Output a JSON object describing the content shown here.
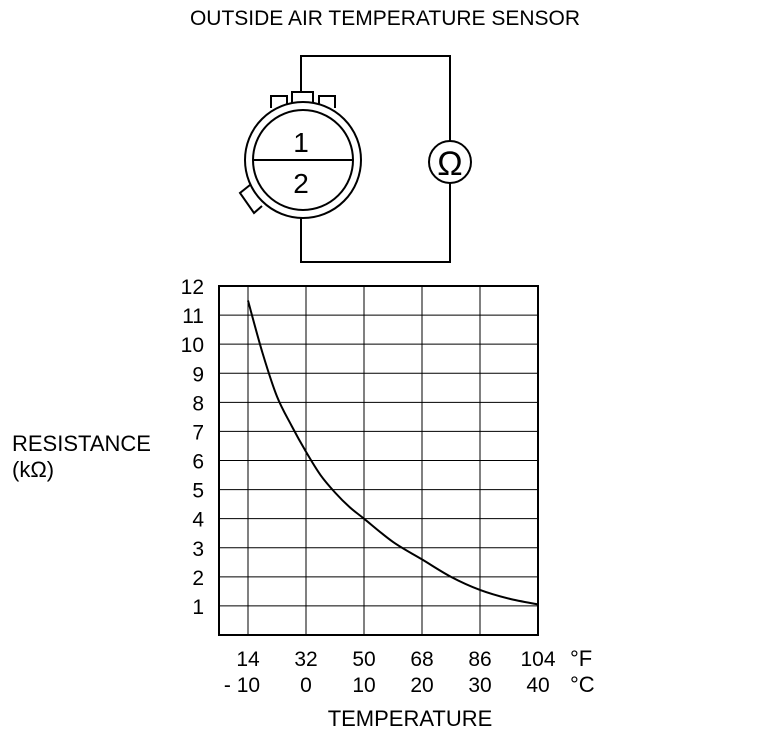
{
  "title": "OUTSIDE AIR TEMPERATURE SENSOR",
  "connector": {
    "pin_top": "1",
    "pin_bottom": "2",
    "meter_symbol": "Ω"
  },
  "chart_data": {
    "type": "line",
    "ylabel_line1": "RESISTANCE",
    "ylabel_line2": "(kΩ)",
    "xlabel": "TEMPERATURE",
    "y_ticks": [
      "12",
      "11",
      "10",
      "9",
      "8",
      "7",
      "6",
      "5",
      "4",
      "3",
      "2",
      "1"
    ],
    "ylim": [
      0,
      12
    ],
    "x_ticks_f": [
      "14",
      "32",
      "50",
      "68",
      "86",
      "104"
    ],
    "x_ticks_c": [
      "- 10",
      "0",
      "10",
      "20",
      "30",
      "40"
    ],
    "x_unit_f": "°F",
    "x_unit_c": "°C",
    "xlim_c": [
      -15,
      40
    ],
    "grid": true,
    "series": [
      {
        "x": [
          -10,
          -7.5,
          -5,
          -2.5,
          0,
          2.5,
          5,
          7.5,
          10,
          15,
          20,
          25,
          30,
          35,
          40
        ],
        "y": [
          11.5,
          9.7,
          8.2,
          7.2,
          6.3,
          5.5,
          4.9,
          4.4,
          4.0,
          3.2,
          2.6,
          2.0,
          1.55,
          1.25,
          1.05
        ]
      }
    ]
  }
}
